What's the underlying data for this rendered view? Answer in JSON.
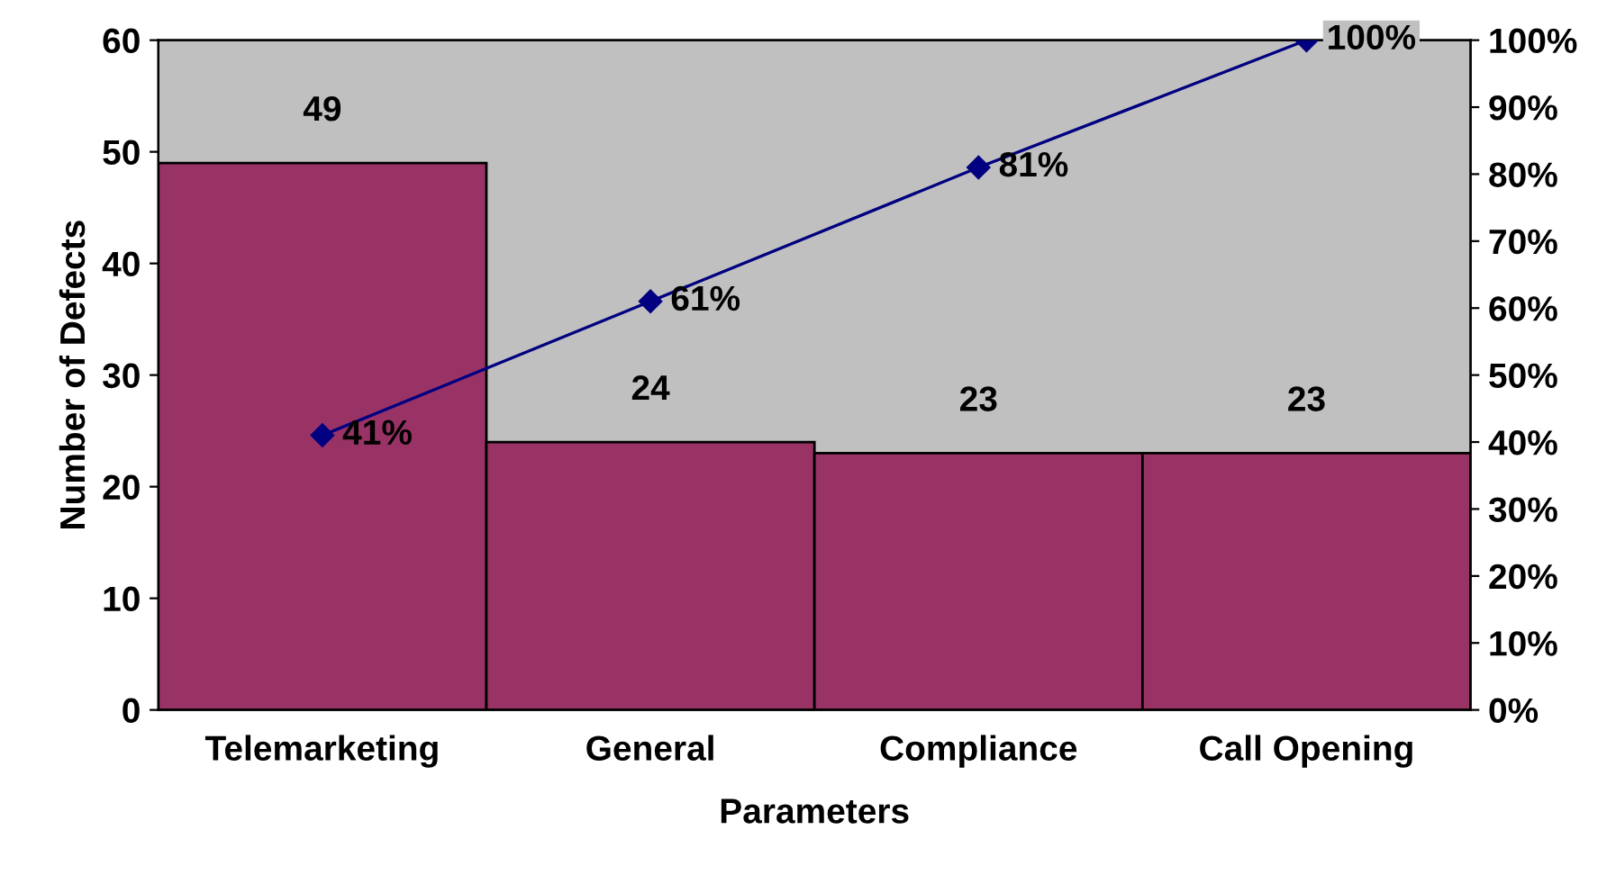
{
  "chart_data": {
    "type": "bar",
    "xlabel": "Parameters",
    "ylabel": "Number of Defects",
    "categories": [
      "Telemarketing",
      "General",
      "Compliance",
      "Call Opening"
    ],
    "series": [
      {
        "color": "#993366",
        "values": [
          49,
          24,
          23,
          23
        ],
        "value_labels": [
          "49",
          "24",
          "23",
          "23"
        ]
      },
      {
        "type": "line",
        "axis": "y2",
        "color": "#000080",
        "values": [
          41,
          61,
          81,
          100
        ],
        "value_labels": [
          "41%",
          "61%",
          "81%",
          "100%"
        ],
        "marker": "diamond",
        "line_style": "solid"
      }
    ],
    "ylim": [
      0,
      60
    ],
    "yticks": [
      0,
      10,
      20,
      30,
      40,
      50,
      60
    ],
    "y2lim": [
      0,
      100
    ],
    "y2ticks": [
      {
        "value": 0,
        "label": "0%"
      },
      {
        "value": 10,
        "label": "10%"
      },
      {
        "value": 20,
        "label": "20%"
      },
      {
        "value": 30,
        "label": "30%"
      },
      {
        "value": 40,
        "label": "40%"
      },
      {
        "value": 50,
        "label": "50%"
      },
      {
        "value": 60,
        "label": "60%"
      },
      {
        "value": 70,
        "label": "70%"
      },
      {
        "value": 80,
        "label": "80%"
      },
      {
        "value": 90,
        "label": "90%"
      },
      {
        "value": 100,
        "label": "100%"
      }
    ],
    "grid": false
  }
}
